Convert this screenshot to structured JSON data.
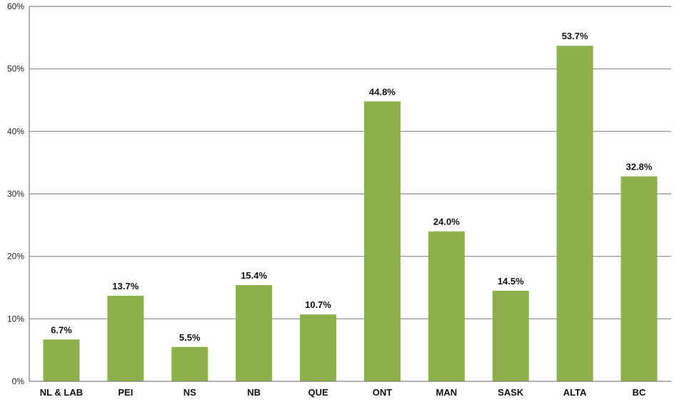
{
  "chart_data": {
    "type": "bar",
    "categories": [
      "NL & LAB",
      "PEI",
      "NS",
      "NB",
      "QUE",
      "ONT",
      "MAN",
      "SASK",
      "ALTA",
      "BC"
    ],
    "values": [
      6.7,
      13.7,
      5.5,
      15.4,
      10.7,
      44.8,
      24.0,
      14.5,
      53.7,
      32.8
    ],
    "data_labels": [
      "6.7%",
      "13.7%",
      "5.5%",
      "15.4%",
      "10.7%",
      "44.8%",
      "24.0%",
      "14.5%",
      "53.7%",
      "32.8%"
    ],
    "y_ticks": [
      "0%",
      "10%",
      "20%",
      "30%",
      "40%",
      "50%",
      "60%"
    ],
    "ylim": [
      0,
      60
    ],
    "y_step": 10,
    "grid": true,
    "legend": "none",
    "bar_color": "#8cb04a",
    "grid_color": "#8a8a8a",
    "axis_color": "#7f7f7f"
  }
}
